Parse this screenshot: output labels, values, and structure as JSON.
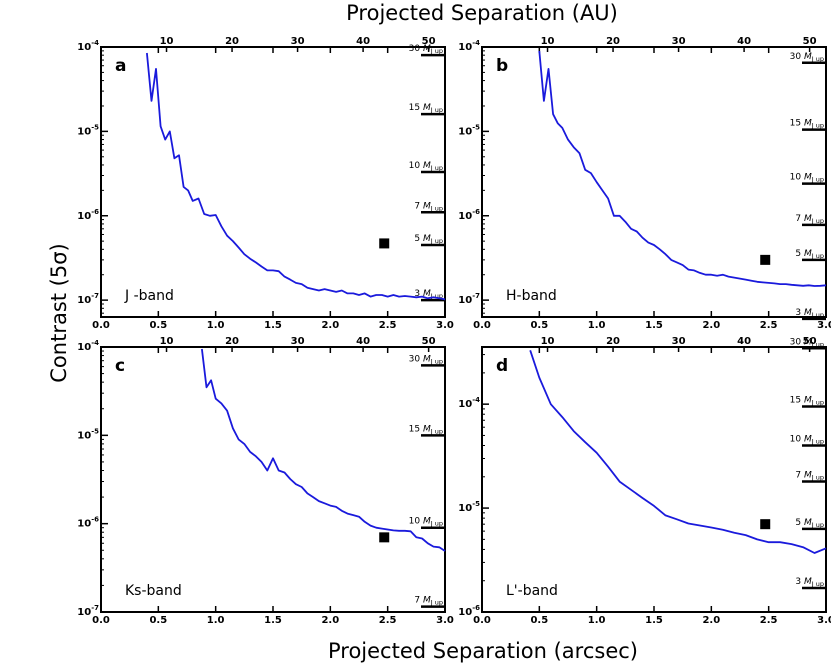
{
  "figure": {
    "top_title": "Projected Separation (AU)",
    "bottom_title": "Projected Separation (arcsec)",
    "y_title": "Contrast (5σ)"
  },
  "colors": {
    "curve": "#1a1adc",
    "axes": "#000000",
    "marker": "#000000"
  },
  "chart_data": [
    {
      "type": "line",
      "panel": "a",
      "band_label": "J -band",
      "x_ticks": [
        "0.0",
        "0.5",
        "1.0",
        "1.5",
        "2.0",
        "2.5",
        "3.0"
      ],
      "top_ticks": [
        "10",
        "20",
        "30",
        "40",
        "50"
      ],
      "top_tick_values": [
        10,
        20,
        30,
        40,
        50
      ],
      "y_ticks": [
        "10^-7",
        "10^-6",
        "10^-5",
        "10^-4"
      ],
      "y_tick_values": [
        -7,
        -6,
        -5,
        -4
      ],
      "ylim_log10": [
        -7.2,
        -4
      ],
      "y_scale": "log",
      "xlim": [
        0,
        3
      ],
      "au_per_arcsec": 17.5,
      "series": [
        {
          "x": [
            0.4,
            0.44,
            0.48,
            0.52,
            0.56,
            0.6,
            0.64,
            0.68,
            0.72,
            0.76,
            0.8,
            0.85,
            0.9,
            0.95,
            1.0,
            1.05,
            1.1,
            1.15,
            1.2,
            1.25,
            1.3,
            1.35,
            1.4,
            1.45,
            1.5,
            1.55,
            1.6,
            1.65,
            1.7,
            1.75,
            1.8,
            1.85,
            1.9,
            1.95,
            2.0,
            2.05,
            2.1,
            2.15,
            2.2,
            2.25,
            2.3,
            2.35,
            2.4,
            2.45,
            2.5,
            2.55,
            2.6,
            2.65,
            2.7,
            2.75,
            2.8,
            2.85,
            2.9,
            2.95,
            3.0
          ],
          "y": [
            8.5e-05,
            2.3e-05,
            5.5e-05,
            1.15e-05,
            8e-06,
            1e-05,
            4.8e-06,
            5.2e-06,
            2.2e-06,
            2e-06,
            1.5e-06,
            1.6e-06,
            1.05e-06,
            1e-06,
            1.02e-06,
            7.5e-07,
            5.8e-07,
            5e-07,
            4.2e-07,
            3.5e-07,
            3.1e-07,
            2.8e-07,
            2.5e-07,
            2.25e-07,
            2.25e-07,
            2.2e-07,
            1.9e-07,
            1.75e-07,
            1.6e-07,
            1.55e-07,
            1.4e-07,
            1.35e-07,
            1.3e-07,
            1.35e-07,
            1.3e-07,
            1.25e-07,
            1.3e-07,
            1.2e-07,
            1.2e-07,
            1.15e-07,
            1.2e-07,
            1.1e-07,
            1.15e-07,
            1.15e-07,
            1.1e-07,
            1.15e-07,
            1.1e-07,
            1.12e-07,
            1.1e-07,
            1.08e-07,
            1.1e-07,
            1.05e-07,
            1.08e-07,
            1.05e-07,
            1.02e-07
          ]
        }
      ],
      "marker": {
        "x": 2.47,
        "y": 4.7e-07
      },
      "mass_lines": [
        {
          "label": "30",
          "y": 8e-05
        },
        {
          "label": "15",
          "y": 1.6e-05
        },
        {
          "label": "10",
          "y": 3.3e-06
        },
        {
          "label": "7",
          "y": 1.1e-06
        },
        {
          "label": "5",
          "y": 4.5e-07
        },
        {
          "label": "3",
          "y": 1e-07
        }
      ]
    },
    {
      "type": "line",
      "panel": "b",
      "band_label": "H-band",
      "x_ticks": [
        "0.0",
        "0.5",
        "1.0",
        "1.5",
        "2.0",
        "2.5",
        "3.0"
      ],
      "top_ticks": [
        "10",
        "20",
        "30",
        "40",
        "50"
      ],
      "top_tick_values": [
        10,
        20,
        30,
        40,
        50
      ],
      "y_ticks": [
        "10^-7",
        "10^-6",
        "10^-5",
        "10^-4"
      ],
      "y_tick_values": [
        -7,
        -6,
        -5,
        -4
      ],
      "ylim_log10": [
        -7.2,
        -4
      ],
      "y_scale": "log",
      "xlim": [
        0,
        3
      ],
      "au_per_arcsec": 17.5,
      "series": [
        {
          "x": [
            0.5,
            0.54,
            0.58,
            0.62,
            0.66,
            0.7,
            0.75,
            0.8,
            0.85,
            0.9,
            0.95,
            1.0,
            1.05,
            1.1,
            1.15,
            1.2,
            1.25,
            1.3,
            1.35,
            1.4,
            1.45,
            1.5,
            1.55,
            1.6,
            1.65,
            1.7,
            1.75,
            1.8,
            1.85,
            1.9,
            1.95,
            2.0,
            2.05,
            2.1,
            2.15,
            2.2,
            2.25,
            2.3,
            2.35,
            2.4,
            2.45,
            2.5,
            2.55,
            2.6,
            2.65,
            2.7,
            2.75,
            2.8,
            2.85,
            2.9,
            2.95,
            3.0
          ],
          "y": [
            9e-05,
            2.3e-05,
            5.5e-05,
            1.6e-05,
            1.25e-05,
            1.1e-05,
            8e-06,
            6.5e-06,
            5.5e-06,
            3.5e-06,
            3.2e-06,
            2.5e-06,
            2e-06,
            1.6e-06,
            1e-06,
            1e-06,
            8.5e-07,
            7e-07,
            6.5e-07,
            5.5e-07,
            4.8e-07,
            4.5e-07,
            4e-07,
            3.5e-07,
            3e-07,
            2.8e-07,
            2.6e-07,
            2.3e-07,
            2.25e-07,
            2.1e-07,
            2e-07,
            2e-07,
            1.95e-07,
            2e-07,
            1.9e-07,
            1.85e-07,
            1.8e-07,
            1.75e-07,
            1.7e-07,
            1.65e-07,
            1.62e-07,
            1.6e-07,
            1.58e-07,
            1.55e-07,
            1.55e-07,
            1.52e-07,
            1.5e-07,
            1.48e-07,
            1.5e-07,
            1.47e-07,
            1.48e-07,
            1.5e-07
          ]
        }
      ],
      "marker": {
        "x": 2.47,
        "y": 3e-07
      },
      "mass_lines": [
        {
          "label": "30",
          "y": 6.5e-05
        },
        {
          "label": "15",
          "y": 1.05e-05
        },
        {
          "label": "10",
          "y": 2.4e-06
        },
        {
          "label": "7",
          "y": 7.8e-07
        },
        {
          "label": "5",
          "y": 3e-07
        },
        {
          "label": "3",
          "y": 6e-08
        }
      ]
    },
    {
      "type": "line",
      "panel": "c",
      "band_label": "Ks-band",
      "x_ticks": [
        "0.0",
        "0.5",
        "1.0",
        "1.5",
        "2.0",
        "2.5",
        "3.0"
      ],
      "top_ticks": [
        "10",
        "20",
        "30",
        "40",
        "50"
      ],
      "top_tick_values": [
        10,
        20,
        30,
        40,
        50
      ],
      "y_ticks": [
        "10^-7",
        "10^-6",
        "10^-5",
        "10^-4"
      ],
      "y_tick_values": [
        -7,
        -6,
        -5,
        -4
      ],
      "ylim_log10": [
        -7,
        -4
      ],
      "y_scale": "log",
      "xlim": [
        0,
        3
      ],
      "au_per_arcsec": 17.5,
      "series": [
        {
          "x": [
            0.88,
            0.92,
            0.96,
            1.0,
            1.05,
            1.1,
            1.15,
            1.2,
            1.25,
            1.3,
            1.35,
            1.4,
            1.45,
            1.5,
            1.55,
            1.6,
            1.65,
            1.7,
            1.75,
            1.8,
            1.85,
            1.9,
            1.95,
            2.0,
            2.05,
            2.1,
            2.15,
            2.2,
            2.25,
            2.3,
            2.35,
            2.4,
            2.45,
            2.5,
            2.55,
            2.6,
            2.65,
            2.7,
            2.75,
            2.8,
            2.85,
            2.9,
            2.95,
            3.0
          ],
          "y": [
            9.5e-05,
            3.5e-05,
            4.2e-05,
            2.6e-05,
            2.3e-05,
            1.9e-05,
            1.2e-05,
            9e-06,
            8e-06,
            6.5e-06,
            5.8e-06,
            5e-06,
            4e-06,
            5.5e-06,
            4e-06,
            3.8e-06,
            3.2e-06,
            2.8e-06,
            2.6e-06,
            2.2e-06,
            2e-06,
            1.8e-06,
            1.7e-06,
            1.6e-06,
            1.55e-06,
            1.4e-06,
            1.3e-06,
            1.25e-06,
            1.2e-06,
            1.05e-06,
            9.5e-07,
            9e-07,
            8.8e-07,
            8.6e-07,
            8.4e-07,
            8.3e-07,
            8.3e-07,
            8.2e-07,
            7e-07,
            6.8e-07,
            6e-07,
            5.5e-07,
            5.4e-07,
            4.9e-07
          ]
        }
      ],
      "marker": {
        "x": 2.47,
        "y": 7e-07
      },
      "mass_lines": [
        {
          "label": "30",
          "y": 6.2e-05
        },
        {
          "label": "15",
          "y": 1e-05
        },
        {
          "label": "10",
          "y": 9e-07
        },
        {
          "label": "7",
          "y": 1.15e-07
        }
      ]
    },
    {
      "type": "line",
      "panel": "d",
      "band_label": "L'-band",
      "x_ticks": [
        "0.0",
        "0.5",
        "1.0",
        "1.5",
        "2.0",
        "2.5",
        "3.0"
      ],
      "top_ticks": [
        "10",
        "20",
        "30",
        "40",
        "50"
      ],
      "top_tick_values": [
        10,
        20,
        30,
        40,
        50
      ],
      "y_ticks": [
        "10^-6",
        "10^-5",
        "10^-4"
      ],
      "y_tick_values": [
        -6,
        -5,
        -4
      ],
      "ylim_log10": [
        -6,
        -3.45
      ],
      "y_scale": "log",
      "xlim": [
        0,
        3
      ],
      "au_per_arcsec": 17.5,
      "series": [
        {
          "x": [
            0.42,
            0.5,
            0.6,
            0.7,
            0.8,
            0.9,
            1.0,
            1.1,
            1.2,
            1.3,
            1.4,
            1.5,
            1.6,
            1.7,
            1.8,
            1.9,
            2.0,
            2.1,
            2.2,
            2.3,
            2.4,
            2.5,
            2.6,
            2.7,
            2.8,
            2.9,
            3.0
          ],
          "y": [
            0.00033,
            0.00018,
            0.0001,
            7.5e-05,
            5.5e-05,
            4.3e-05,
            3.4e-05,
            2.5e-05,
            1.8e-05,
            1.5e-05,
            1.25e-05,
            1.05e-05,
            8.5e-06,
            7.8e-06,
            7.1e-06,
            6.8e-06,
            6.5e-06,
            6.2e-06,
            5.8e-06,
            5.5e-06,
            5e-06,
            4.7e-06,
            4.7e-06,
            4.5e-06,
            4.2e-06,
            3.7e-06,
            4.1e-06
          ]
        }
      ],
      "marker": {
        "x": 2.47,
        "y": 7e-06
      },
      "mass_lines": [
        {
          "label": "30",
          "y": 0.000345
        },
        {
          "label": "15",
          "y": 9.5e-05
        },
        {
          "label": "10",
          "y": 4e-05
        },
        {
          "label": "7",
          "y": 1.8e-05
        },
        {
          "label": "5",
          "y": 6.3e-06
        },
        {
          "label": "3",
          "y": 1.7e-06
        }
      ]
    }
  ]
}
